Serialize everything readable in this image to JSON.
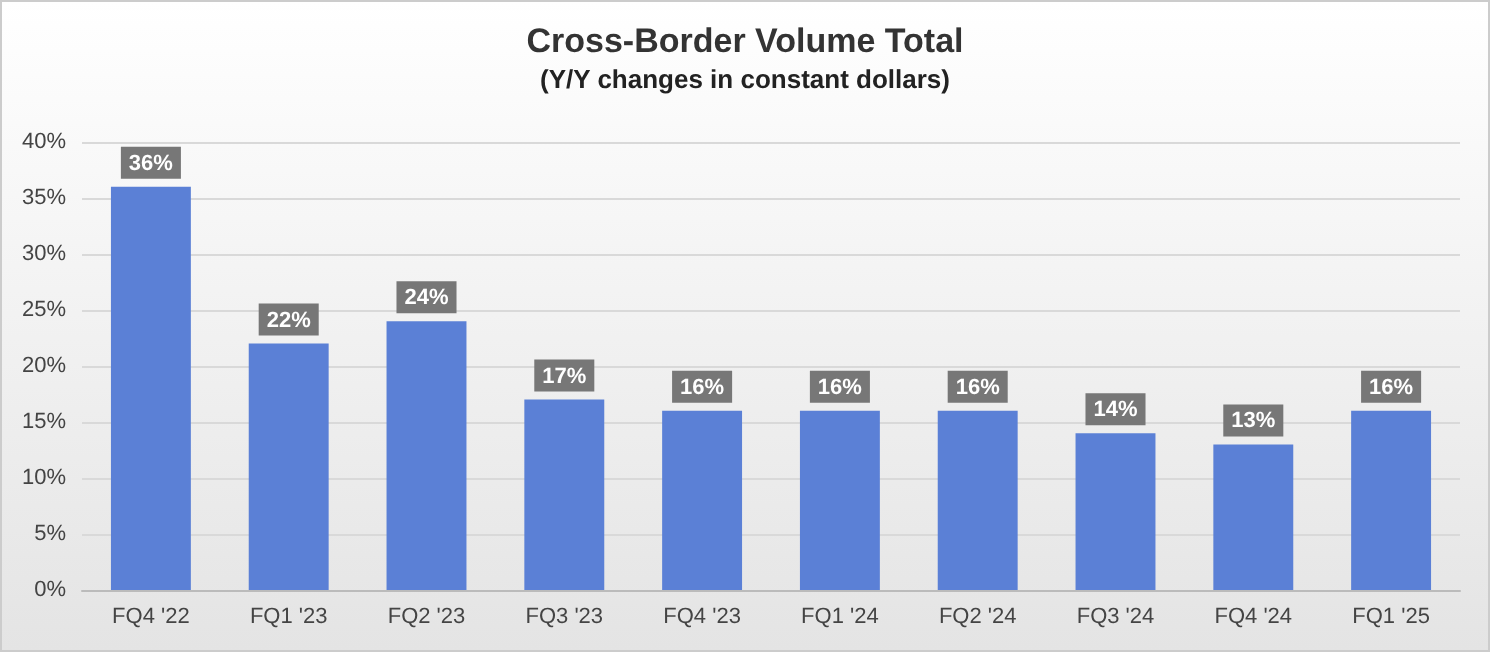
{
  "chart_data": {
    "type": "bar",
    "title": "Cross-Border Volume Total",
    "subtitle": "(Y/Y changes in constant dollars)",
    "categories": [
      "FQ4 '22",
      "FQ1 '23",
      "FQ2 '23",
      "FQ3 '23",
      "FQ4 '23",
      "FQ1 '24",
      "FQ2 '24",
      "FQ3 '24",
      "FQ4 '24",
      "FQ1 '25"
    ],
    "values": [
      36,
      22,
      24,
      17,
      16,
      16,
      16,
      14,
      13,
      16
    ],
    "value_labels": [
      "36%",
      "22%",
      "24%",
      "17%",
      "16%",
      "16%",
      "16%",
      "14%",
      "13%",
      "16%"
    ],
    "color": "#5b80d6",
    "ylim": [
      0,
      40
    ],
    "yticks": [
      {
        "value": 0,
        "label": "0%"
      },
      {
        "value": 5,
        "label": "5%"
      },
      {
        "value": 10,
        "label": "10%"
      },
      {
        "value": 15,
        "label": "15%"
      },
      {
        "value": 20,
        "label": "20%"
      },
      {
        "value": 25,
        "label": "25%"
      },
      {
        "value": 30,
        "label": "30%"
      },
      {
        "value": 35,
        "label": "35%"
      },
      {
        "value": 40,
        "label": "40%"
      }
    ],
    "grid": "y"
  }
}
